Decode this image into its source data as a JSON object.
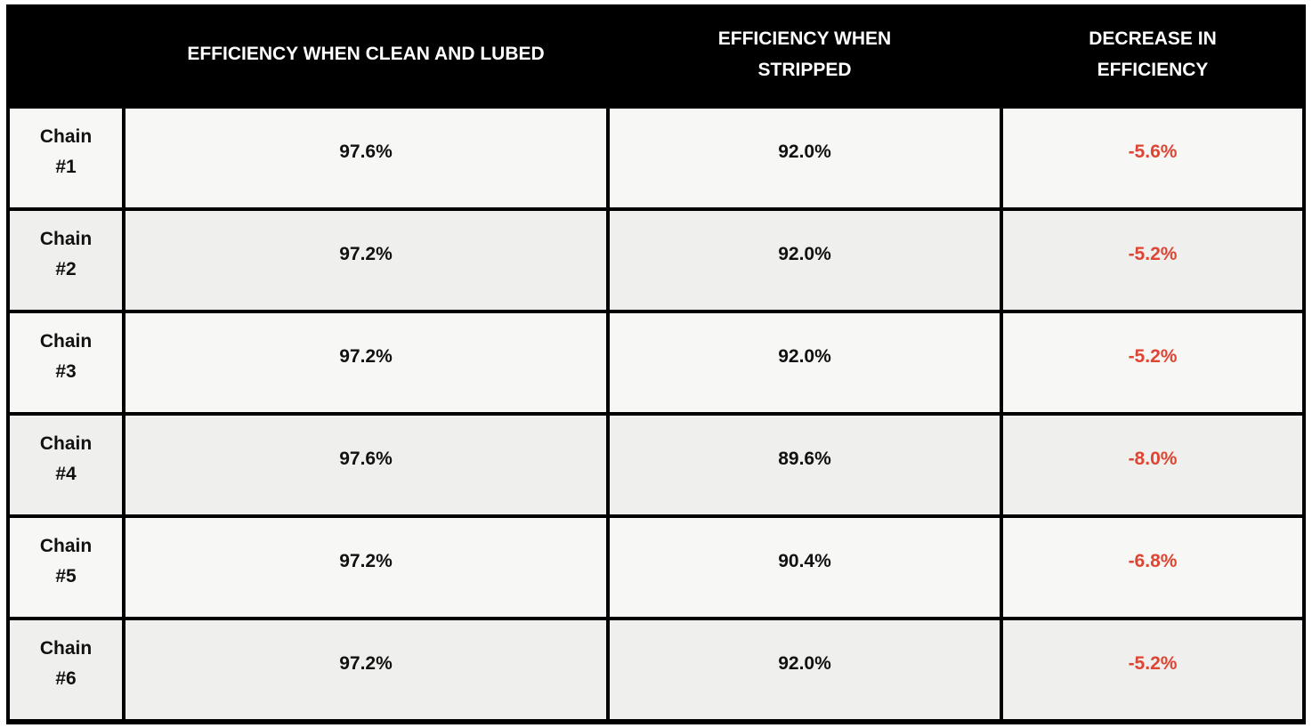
{
  "table": {
    "columns": [
      {
        "label": ""
      },
      {
        "label": "EFFICIENCY WHEN CLEAN AND LUBED"
      },
      {
        "label": "EFFICIENCY WHEN STRIPPED"
      },
      {
        "label": "DECREASE IN EFFICIENCY"
      }
    ],
    "rows": [
      {
        "label": "Chain #1",
        "clean": "97.6%",
        "stripped": "92.0%",
        "decrease": "-5.6%"
      },
      {
        "label": "Chain #2",
        "clean": "97.2%",
        "stripped": "92.0%",
        "decrease": "-5.2%"
      },
      {
        "label": "Chain #3",
        "clean": "97.2%",
        "stripped": "92.0%",
        "decrease": "-5.2%"
      },
      {
        "label": "Chain #4",
        "clean": "97.6%",
        "stripped": "89.6%",
        "decrease": "-8.0%"
      },
      {
        "label": "Chain #5",
        "clean": "97.2%",
        "stripped": "90.4%",
        "decrease": "-6.8%"
      },
      {
        "label": "Chain #6",
        "clean": "97.2%",
        "stripped": "92.0%",
        "decrease": "-5.2%"
      }
    ]
  },
  "colors": {
    "header_bg": "#000000",
    "header_text": "#FFFFFF",
    "grid_line": "#000000",
    "row_light_bg": "#F7F7F6",
    "row_dark_bg": "#EFEFED",
    "body_text": "#111111",
    "decrease_text": "#DE4533"
  },
  "chart_data": {
    "type": "table",
    "title": "",
    "columns": [
      "",
      "EFFICIENCY WHEN CLEAN AND LUBED",
      "EFFICIENCY WHEN STRIPPED",
      "DECREASE IN EFFICIENCY"
    ],
    "row_labels": [
      "Chain #1",
      "Chain #2",
      "Chain #3",
      "Chain #4",
      "Chain #5",
      "Chain #6"
    ],
    "series": [
      {
        "name": "EFFICIENCY WHEN CLEAN AND LUBED",
        "values": [
          97.6,
          97.2,
          97.2,
          97.6,
          97.2,
          97.2
        ]
      },
      {
        "name": "EFFICIENCY WHEN STRIPPED",
        "values": [
          92.0,
          92.0,
          92.0,
          89.6,
          90.4,
          92.0
        ]
      },
      {
        "name": "DECREASE IN EFFICIENCY",
        "values": [
          -5.6,
          -5.2,
          -5.2,
          -8.0,
          -6.8,
          -5.2
        ]
      }
    ],
    "units": "%"
  }
}
